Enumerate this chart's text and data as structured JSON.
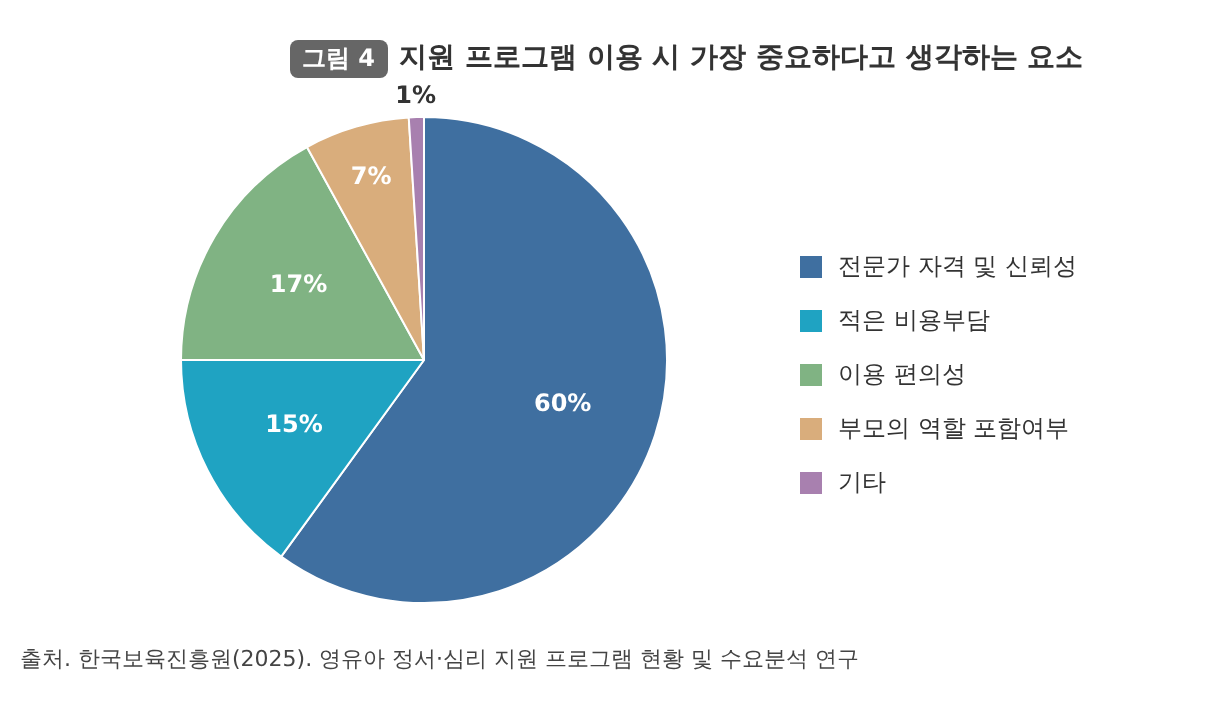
{
  "chart_data": {
    "type": "pie",
    "title": "지원 프로그램 이용 시 가장 중요하다고 생각하는 요소",
    "categories": [
      "전문가 자격 및 신뢰성",
      "적은 비용부담",
      "이용 편의성",
      "부모의 역할 포함여부",
      "기타"
    ],
    "values": [
      60,
      15,
      17,
      7,
      1
    ],
    "colors": [
      "#3f6fa0",
      "#1fa3c2",
      "#80b383",
      "#d9ad7c",
      "#a880af"
    ],
    "value_labels": [
      "60%",
      "15%",
      "17%",
      "7%",
      "1%"
    ],
    "legend": "right",
    "annotations": [
      "그림 4",
      "출처. 한국보육진흥원(2025). 영유아 정서·심리 지원 프로그램 현황 및 수요분석 연구"
    ]
  }
}
